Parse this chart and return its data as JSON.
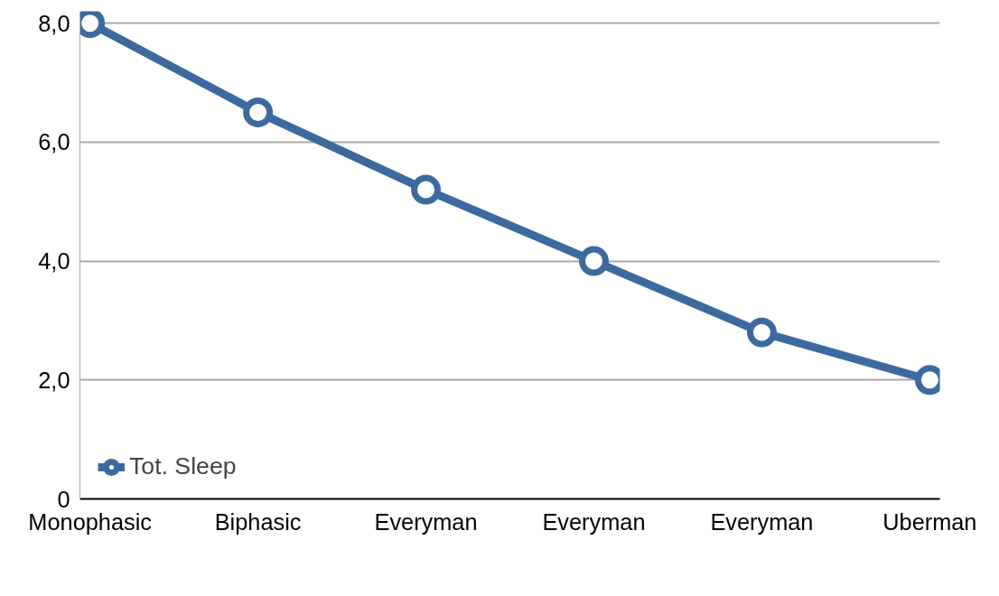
{
  "chart_data": {
    "type": "line",
    "categories": [
      "Monophasic",
      "Biphasic",
      "Everyman",
      "Everyman",
      "Everyman",
      "Uberman"
    ],
    "series": [
      {
        "name": "Tot. Sleep",
        "color": "#3d6a9e",
        "values": [
          8.0,
          6.5,
          5.2,
          4.0,
          2.8,
          2.0
        ]
      }
    ],
    "ylim": [
      0,
      8.2
    ],
    "yticks": [
      0,
      {
        "value": 2,
        "label": "2,0"
      },
      {
        "value": 4,
        "label": "4,0"
      },
      {
        "value": 6,
        "label": "6,0"
      },
      {
        "value": 8,
        "label": "8,0"
      }
    ],
    "grid": "y",
    "legend": "bottom left",
    "marker": "circle",
    "line_style": "solid"
  }
}
